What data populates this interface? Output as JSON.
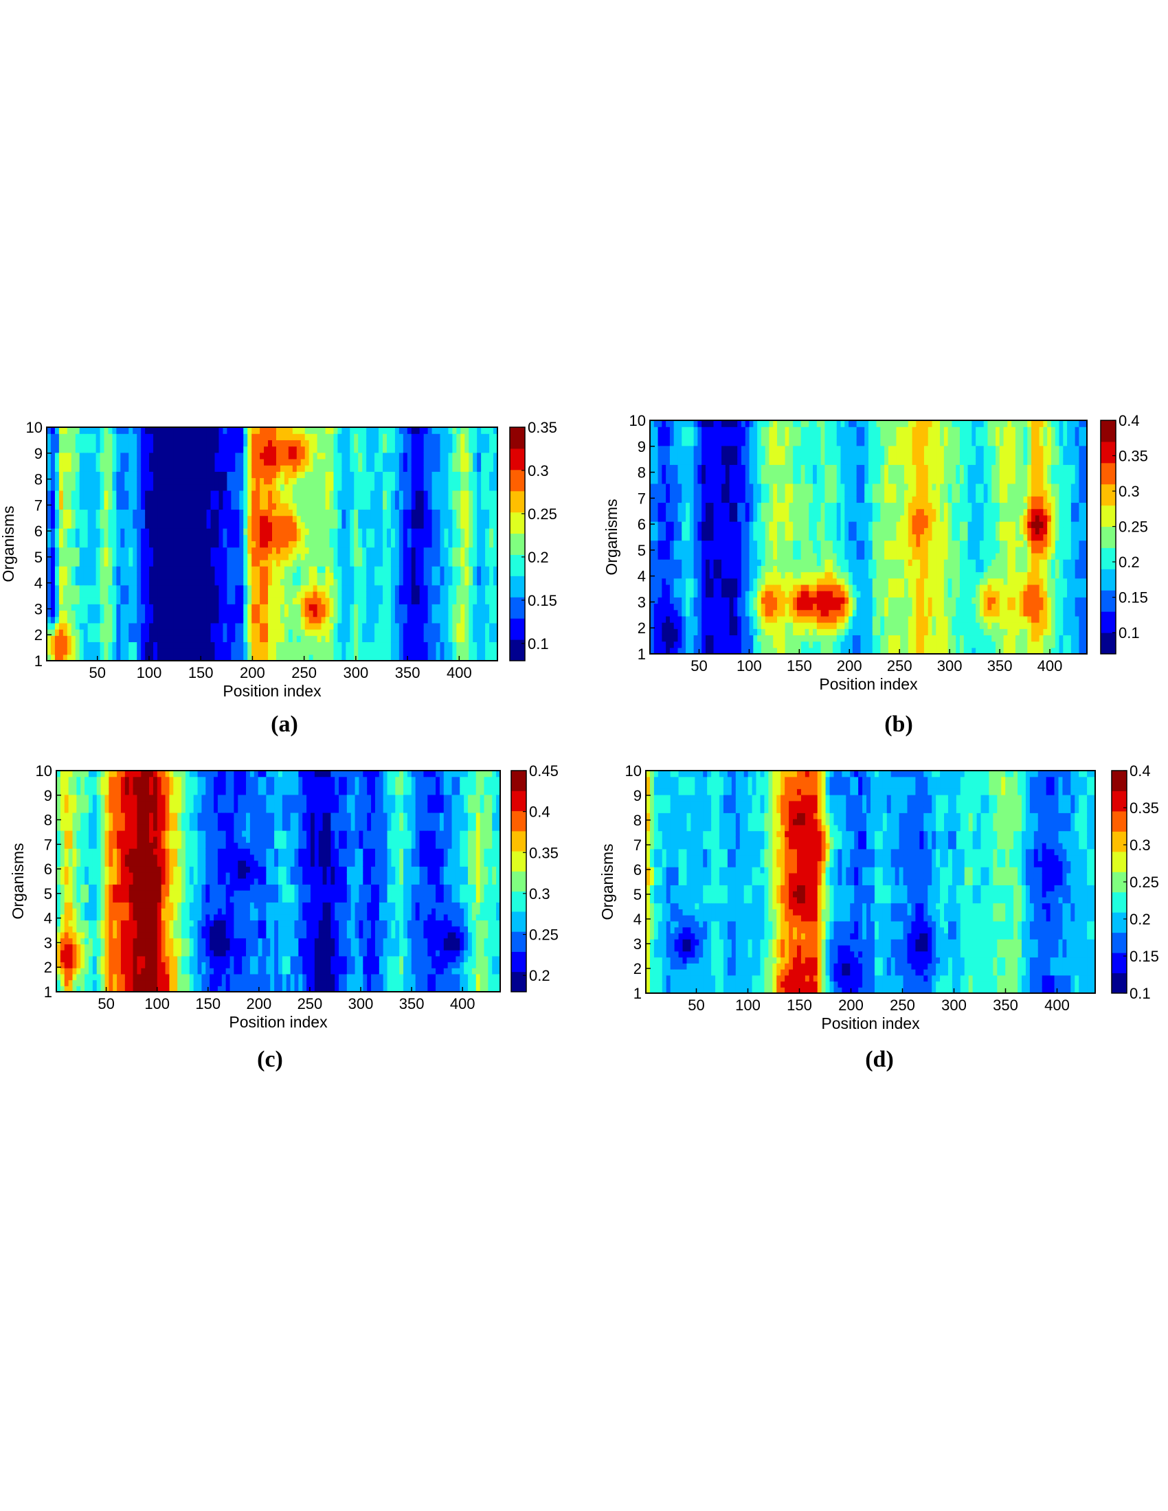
{
  "palette": [
    "#00008F",
    "#0000FF",
    "#0060FF",
    "#00BFFF",
    "#20FFDF",
    "#80FF80",
    "#DFFF20",
    "#FFBF00",
    "#FF6000",
    "#DF0000",
    "#8F0000"
  ],
  "chart_data": [
    {
      "type": "heatmap",
      "panel": "(a)",
      "xlabel": "Position index",
      "ylabel": "Organisms",
      "x_ticks": [
        50,
        100,
        150,
        200,
        250,
        300,
        350,
        400
      ],
      "y_ticks": [
        1,
        2,
        3,
        4,
        5,
        6,
        7,
        8,
        9,
        10
      ],
      "xlim": [
        1,
        437
      ],
      "ylim": [
        1,
        10
      ],
      "colorbar": {
        "range": [
          0.08,
          0.35
        ],
        "ticks": [
          "0.1",
          "0.15",
          "0.2",
          "0.25",
          "0.3",
          "0.35"
        ],
        "tick_values": [
          0.1,
          0.15,
          0.2,
          0.25,
          0.3,
          0.35
        ]
      },
      "columns": [
        {
          "x": 1,
          "v": 0.16
        },
        {
          "x": 8,
          "v": 0.12
        },
        {
          "x": 15,
          "v": 0.24
        },
        {
          "x": 22,
          "v": 0.22
        },
        {
          "x": 35,
          "v": 0.18
        },
        {
          "x": 50,
          "v": 0.17
        },
        {
          "x": 60,
          "v": 0.23
        },
        {
          "x": 70,
          "v": 0.15
        },
        {
          "x": 85,
          "v": 0.17
        },
        {
          "x": 95,
          "v": 0.11
        },
        {
          "x": 110,
          "v": 0.08
        },
        {
          "x": 125,
          "v": 0.09
        },
        {
          "x": 140,
          "v": 0.08
        },
        {
          "x": 160,
          "v": 0.09
        },
        {
          "x": 175,
          "v": 0.12
        },
        {
          "x": 190,
          "v": 0.14
        },
        {
          "x": 200,
          "v": 0.27
        },
        {
          "x": 215,
          "v": 0.27
        },
        {
          "x": 230,
          "v": 0.22
        },
        {
          "x": 245,
          "v": 0.2
        },
        {
          "x": 260,
          "v": 0.21
        },
        {
          "x": 275,
          "v": 0.22
        },
        {
          "x": 290,
          "v": 0.15
        },
        {
          "x": 300,
          "v": 0.2
        },
        {
          "x": 315,
          "v": 0.17
        },
        {
          "x": 330,
          "v": 0.19
        },
        {
          "x": 345,
          "v": 0.14
        },
        {
          "x": 360,
          "v": 0.1
        },
        {
          "x": 375,
          "v": 0.15
        },
        {
          "x": 390,
          "v": 0.17
        },
        {
          "x": 405,
          "v": 0.24
        },
        {
          "x": 418,
          "v": 0.16
        },
        {
          "x": 430,
          "v": 0.19
        },
        {
          "x": 437,
          "v": 0.18
        }
      ],
      "hotspots": [
        {
          "x": 218,
          "y": 9,
          "v": 0.31
        },
        {
          "x": 240,
          "y": 9,
          "v": 0.31
        },
        {
          "x": 213,
          "y": 6,
          "v": 0.31
        },
        {
          "x": 235,
          "y": 6,
          "v": 0.3
        },
        {
          "x": 260,
          "y": 3,
          "v": 0.31
        },
        {
          "x": 12,
          "y": 1.5,
          "v": 0.3
        }
      ]
    },
    {
      "type": "heatmap",
      "panel": "(b)",
      "xlabel": "Position index",
      "ylabel": "Organisms",
      "x_ticks": [
        50,
        100,
        150,
        200,
        250,
        300,
        350,
        400
      ],
      "y_ticks": [
        1,
        2,
        3,
        4,
        5,
        6,
        7,
        8,
        9,
        10
      ],
      "xlim": [
        1,
        437
      ],
      "ylim": [
        1,
        10
      ],
      "colorbar": {
        "range": [
          0.07,
          0.4
        ],
        "ticks": [
          "0.1",
          "0.15",
          "0.2",
          "0.25",
          "0.3",
          "0.35",
          "0.4"
        ],
        "tick_values": [
          0.1,
          0.15,
          0.2,
          0.25,
          0.3,
          0.35,
          0.4
        ]
      },
      "columns": [
        {
          "x": 1,
          "v": 0.17
        },
        {
          "x": 15,
          "v": 0.13
        },
        {
          "x": 30,
          "v": 0.16
        },
        {
          "x": 40,
          "v": 0.2
        },
        {
          "x": 55,
          "v": 0.1
        },
        {
          "x": 70,
          "v": 0.11
        },
        {
          "x": 85,
          "v": 0.1
        },
        {
          "x": 100,
          "v": 0.15
        },
        {
          "x": 115,
          "v": 0.22
        },
        {
          "x": 125,
          "v": 0.25
        },
        {
          "x": 140,
          "v": 0.24
        },
        {
          "x": 150,
          "v": 0.22
        },
        {
          "x": 165,
          "v": 0.2
        },
        {
          "x": 180,
          "v": 0.23
        },
        {
          "x": 195,
          "v": 0.18
        },
        {
          "x": 210,
          "v": 0.15
        },
        {
          "x": 225,
          "v": 0.21
        },
        {
          "x": 240,
          "v": 0.25
        },
        {
          "x": 255,
          "v": 0.24
        },
        {
          "x": 270,
          "v": 0.3
        },
        {
          "x": 285,
          "v": 0.26
        },
        {
          "x": 300,
          "v": 0.23
        },
        {
          "x": 315,
          "v": 0.21
        },
        {
          "x": 330,
          "v": 0.17
        },
        {
          "x": 345,
          "v": 0.23
        },
        {
          "x": 360,
          "v": 0.25
        },
        {
          "x": 375,
          "v": 0.22
        },
        {
          "x": 385,
          "v": 0.3
        },
        {
          "x": 395,
          "v": 0.26
        },
        {
          "x": 410,
          "v": 0.2
        },
        {
          "x": 425,
          "v": 0.17
        },
        {
          "x": 437,
          "v": 0.15
        }
      ],
      "hotspots": [
        {
          "x": 120,
          "y": 3,
          "v": 0.33
        },
        {
          "x": 155,
          "y": 3,
          "v": 0.36
        },
        {
          "x": 175,
          "y": 3,
          "v": 0.37
        },
        {
          "x": 190,
          "y": 3,
          "v": 0.35
        },
        {
          "x": 270,
          "y": 6,
          "v": 0.32
        },
        {
          "x": 388,
          "y": 6,
          "v": 0.38
        },
        {
          "x": 340,
          "y": 3,
          "v": 0.32
        },
        {
          "x": 380,
          "y": 3,
          "v": 0.34
        },
        {
          "x": 20,
          "y": 1.8,
          "v": 0.08
        }
      ]
    },
    {
      "type": "heatmap",
      "panel": "(c)",
      "xlabel": "Position index",
      "ylabel": "Organisms",
      "x_ticks": [
        50,
        100,
        150,
        200,
        250,
        300,
        350,
        400
      ],
      "y_ticks": [
        1,
        2,
        3,
        4,
        5,
        6,
        7,
        8,
        9,
        10
      ],
      "xlim": [
        1,
        437
      ],
      "ylim": [
        1,
        10
      ],
      "colorbar": {
        "range": [
          0.18,
          0.45
        ],
        "ticks": [
          "0.2",
          "0.25",
          "0.3",
          "0.35",
          "0.4",
          "0.45"
        ],
        "tick_values": [
          0.2,
          0.25,
          0.3,
          0.35,
          0.4,
          0.45
        ]
      },
      "columns": [
        {
          "x": 1,
          "v": 0.28
        },
        {
          "x": 10,
          "v": 0.36
        },
        {
          "x": 25,
          "v": 0.3
        },
        {
          "x": 40,
          "v": 0.28
        },
        {
          "x": 55,
          "v": 0.38
        },
        {
          "x": 70,
          "v": 0.41
        },
        {
          "x": 85,
          "v": 0.44
        },
        {
          "x": 100,
          "v": 0.42
        },
        {
          "x": 115,
          "v": 0.35
        },
        {
          "x": 130,
          "v": 0.29
        },
        {
          "x": 145,
          "v": 0.25
        },
        {
          "x": 160,
          "v": 0.22
        },
        {
          "x": 175,
          "v": 0.23
        },
        {
          "x": 190,
          "v": 0.25
        },
        {
          "x": 205,
          "v": 0.24
        },
        {
          "x": 220,
          "v": 0.27
        },
        {
          "x": 235,
          "v": 0.26
        },
        {
          "x": 250,
          "v": 0.21
        },
        {
          "x": 265,
          "v": 0.2
        },
        {
          "x": 280,
          "v": 0.23
        },
        {
          "x": 295,
          "v": 0.25
        },
        {
          "x": 310,
          "v": 0.22
        },
        {
          "x": 325,
          "v": 0.26
        },
        {
          "x": 340,
          "v": 0.3
        },
        {
          "x": 355,
          "v": 0.24
        },
        {
          "x": 370,
          "v": 0.22
        },
        {
          "x": 385,
          "v": 0.25
        },
        {
          "x": 400,
          "v": 0.27
        },
        {
          "x": 415,
          "v": 0.32
        },
        {
          "x": 425,
          "v": 0.3
        },
        {
          "x": 437,
          "v": 0.28
        }
      ],
      "hotspots": [
        {
          "x": 12,
          "y": 2.5,
          "v": 0.42
        },
        {
          "x": 90,
          "y": 6,
          "v": 0.45
        },
        {
          "x": 95,
          "y": 1.5,
          "v": 0.43
        },
        {
          "x": 160,
          "y": 3,
          "v": 0.19
        },
        {
          "x": 185,
          "y": 6,
          "v": 0.2
        },
        {
          "x": 390,
          "y": 3,
          "v": 0.19
        }
      ]
    },
    {
      "type": "heatmap",
      "panel": "(d)",
      "xlabel": "Position index",
      "ylabel": "Organisms",
      "x_ticks": [
        50,
        100,
        150,
        200,
        250,
        300,
        350,
        400
      ],
      "y_ticks": [
        1,
        2,
        3,
        4,
        5,
        6,
        7,
        8,
        9,
        10
      ],
      "xlim": [
        1,
        437
      ],
      "ylim": [
        1,
        10
      ],
      "colorbar": {
        "range": [
          0.1,
          0.4
        ],
        "ticks": [
          "0.1",
          "0.15",
          "0.2",
          "0.25",
          "0.3",
          "0.35",
          "0.4"
        ],
        "tick_values": [
          0.1,
          0.15,
          0.2,
          0.25,
          0.3,
          0.35,
          0.4
        ]
      },
      "columns": [
        {
          "x": 1,
          "v": 0.3
        },
        {
          "x": 10,
          "v": 0.22
        },
        {
          "x": 25,
          "v": 0.19
        },
        {
          "x": 40,
          "v": 0.21
        },
        {
          "x": 55,
          "v": 0.19
        },
        {
          "x": 70,
          "v": 0.22
        },
        {
          "x": 85,
          "v": 0.18
        },
        {
          "x": 100,
          "v": 0.2
        },
        {
          "x": 115,
          "v": 0.21
        },
        {
          "x": 135,
          "v": 0.31
        },
        {
          "x": 150,
          "v": 0.33
        },
        {
          "x": 165,
          "v": 0.34
        },
        {
          "x": 180,
          "v": 0.2
        },
        {
          "x": 195,
          "v": 0.18
        },
        {
          "x": 210,
          "v": 0.16
        },
        {
          "x": 225,
          "v": 0.2
        },
        {
          "x": 240,
          "v": 0.19
        },
        {
          "x": 255,
          "v": 0.17
        },
        {
          "x": 270,
          "v": 0.16
        },
        {
          "x": 285,
          "v": 0.21
        },
        {
          "x": 300,
          "v": 0.19
        },
        {
          "x": 315,
          "v": 0.23
        },
        {
          "x": 330,
          "v": 0.21
        },
        {
          "x": 345,
          "v": 0.25
        },
        {
          "x": 360,
          "v": 0.24
        },
        {
          "x": 375,
          "v": 0.18
        },
        {
          "x": 390,
          "v": 0.16
        },
        {
          "x": 405,
          "v": 0.18
        },
        {
          "x": 420,
          "v": 0.2
        },
        {
          "x": 437,
          "v": 0.21
        }
      ],
      "hotspots": [
        {
          "x": 150,
          "y": 8,
          "v": 0.38
        },
        {
          "x": 150,
          "y": 5,
          "v": 0.38
        },
        {
          "x": 165,
          "y": 7,
          "v": 0.37
        },
        {
          "x": 145,
          "y": 1.3,
          "v": 0.37
        },
        {
          "x": 40,
          "y": 3,
          "v": 0.12
        },
        {
          "x": 270,
          "y": 3,
          "v": 0.12
        },
        {
          "x": 195,
          "y": 2,
          "v": 0.12
        },
        {
          "x": 395,
          "y": 6,
          "v": 0.13
        }
      ]
    }
  ],
  "captions": [
    "(a)",
    "(b)",
    "(c)",
    "(d)"
  ]
}
